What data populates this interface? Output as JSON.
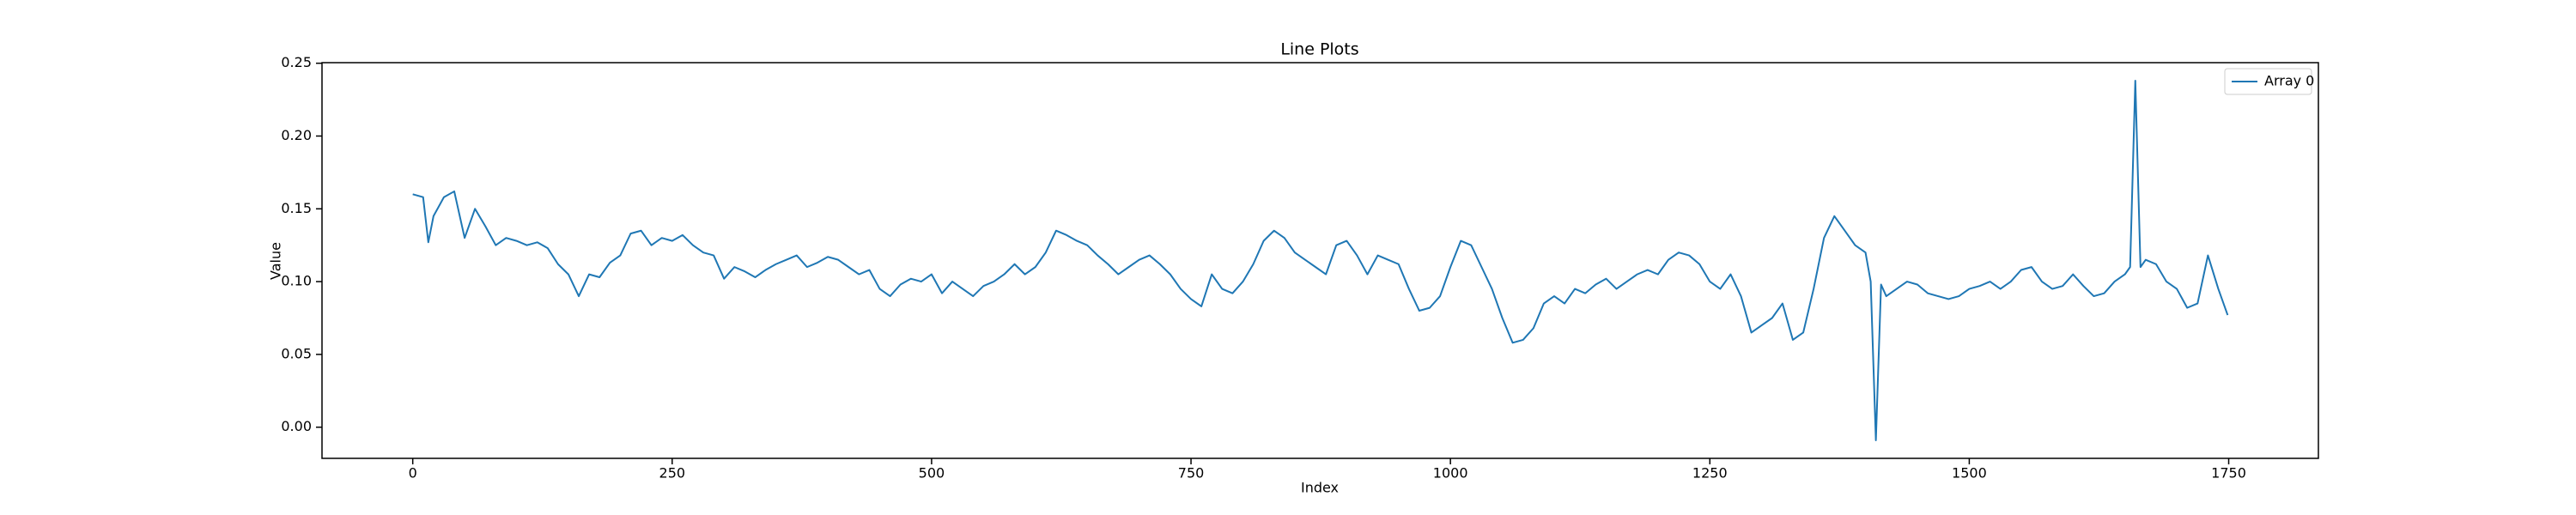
{
  "chart_data": {
    "type": "line",
    "title": "Line Plots",
    "x_label": "Index",
    "y_label": "Value",
    "x": [
      0,
      10,
      15,
      20,
      30,
      40,
      50,
      60,
      70,
      80,
      90,
      100,
      110,
      120,
      130,
      140,
      150,
      160,
      170,
      180,
      190,
      200,
      210,
      220,
      230,
      240,
      250,
      260,
      270,
      280,
      290,
      300,
      310,
      320,
      330,
      340,
      350,
      360,
      370,
      380,
      390,
      400,
      410,
      420,
      430,
      440,
      450,
      460,
      470,
      480,
      490,
      500,
      510,
      520,
      530,
      540,
      550,
      560,
      570,
      580,
      590,
      600,
      610,
      620,
      630,
      640,
      650,
      660,
      670,
      680,
      690,
      700,
      710,
      720,
      730,
      740,
      750,
      760,
      770,
      780,
      790,
      800,
      810,
      820,
      830,
      840,
      850,
      860,
      870,
      880,
      890,
      900,
      910,
      920,
      930,
      940,
      950,
      960,
      970,
      980,
      990,
      1000,
      1010,
      1020,
      1030,
      1040,
      1050,
      1060,
      1070,
      1080,
      1090,
      1100,
      1110,
      1120,
      1130,
      1140,
      1150,
      1160,
      1170,
      1180,
      1190,
      1200,
      1210,
      1220,
      1230,
      1240,
      1250,
      1260,
      1270,
      1280,
      1290,
      1300,
      1310,
      1320,
      1330,
      1340,
      1350,
      1360,
      1370,
      1380,
      1390,
      1400,
      1405,
      1410,
      1415,
      1420,
      1430,
      1440,
      1450,
      1460,
      1470,
      1480,
      1490,
      1500,
      1510,
      1520,
      1530,
      1540,
      1550,
      1560,
      1570,
      1580,
      1590,
      1600,
      1610,
      1620,
      1630,
      1640,
      1650,
      1655,
      1660,
      1665,
      1670,
      1680,
      1690,
      1700,
      1710,
      1720,
      1730,
      1740,
      1749
    ],
    "series": [
      {
        "name": "Array 0",
        "color": "#1f77b4",
        "values": [
          0.16,
          0.158,
          0.127,
          0.145,
          0.158,
          0.162,
          0.13,
          0.15,
          0.138,
          0.125,
          0.13,
          0.128,
          0.125,
          0.127,
          0.123,
          0.112,
          0.105,
          0.09,
          0.105,
          0.103,
          0.113,
          0.118,
          0.133,
          0.135,
          0.125,
          0.13,
          0.128,
          0.132,
          0.125,
          0.12,
          0.118,
          0.102,
          0.11,
          0.107,
          0.103,
          0.108,
          0.112,
          0.115,
          0.118,
          0.11,
          0.113,
          0.117,
          0.115,
          0.11,
          0.105,
          0.108,
          0.095,
          0.09,
          0.098,
          0.102,
          0.1,
          0.105,
          0.092,
          0.1,
          0.095,
          0.09,
          0.097,
          0.1,
          0.105,
          0.112,
          0.105,
          0.11,
          0.12,
          0.135,
          0.132,
          0.128,
          0.125,
          0.118,
          0.112,
          0.105,
          0.11,
          0.115,
          0.118,
          0.112,
          0.105,
          0.095,
          0.088,
          0.083,
          0.105,
          0.095,
          0.092,
          0.1,
          0.112,
          0.128,
          0.135,
          0.13,
          0.12,
          0.115,
          0.11,
          0.105,
          0.125,
          0.128,
          0.118,
          0.105,
          0.118,
          0.115,
          0.112,
          0.095,
          0.08,
          0.082,
          0.09,
          0.11,
          0.128,
          0.125,
          0.11,
          0.095,
          0.075,
          0.058,
          0.06,
          0.068,
          0.085,
          0.09,
          0.085,
          0.095,
          0.092,
          0.098,
          0.102,
          0.095,
          0.1,
          0.105,
          0.108,
          0.105,
          0.115,
          0.12,
          0.118,
          0.112,
          0.1,
          0.095,
          0.105,
          0.09,
          0.065,
          0.07,
          0.075,
          0.085,
          0.06,
          0.065,
          0.095,
          0.13,
          0.145,
          0.135,
          0.125,
          0.12,
          0.1,
          -0.009,
          0.098,
          0.09,
          0.095,
          0.1,
          0.098,
          0.092,
          0.09,
          0.088,
          0.09,
          0.095,
          0.097,
          0.1,
          0.095,
          0.1,
          0.108,
          0.11,
          0.1,
          0.095,
          0.097,
          0.105,
          0.097,
          0.09,
          0.092,
          0.1,
          0.105,
          0.11,
          0.238,
          0.11,
          0.115,
          0.112,
          0.1,
          0.095,
          0.082,
          0.085,
          0.118,
          0.095,
          0.077
        ]
      }
    ],
    "xlim": [
      -87.45,
      1836.45
    ],
    "ylim": [
      -0.0214,
      0.2504
    ],
    "xticks": [
      0,
      250,
      500,
      750,
      1000,
      1250,
      1500,
      1750
    ],
    "yticks": [
      {
        "value": 0,
        "label": "0.00"
      },
      {
        "value": 0.05,
        "label": "0.05"
      },
      {
        "value": 0.1,
        "label": "0.10"
      },
      {
        "value": 0.15,
        "label": "0.15"
      },
      {
        "value": 0.2,
        "label": "0.20"
      },
      {
        "value": 0.25,
        "label": "0.25"
      }
    ],
    "legend": "upper right",
    "grid": false
  }
}
